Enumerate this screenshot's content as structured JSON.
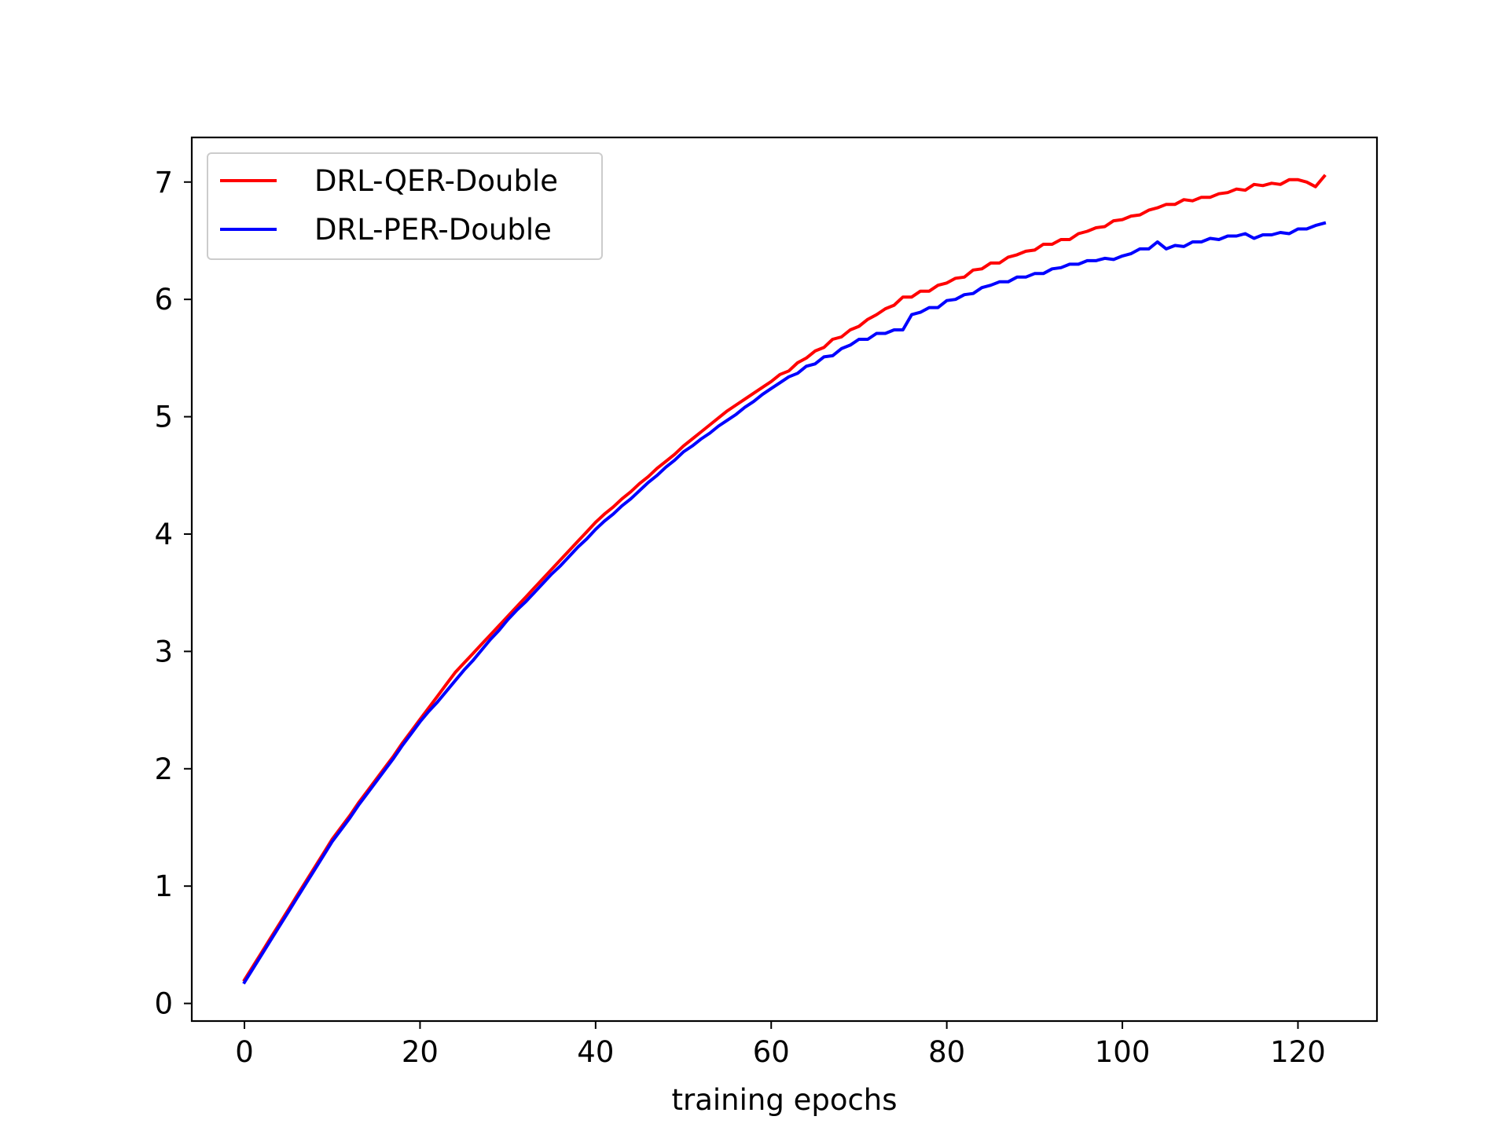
{
  "chart_data": {
    "type": "line",
    "title": "",
    "xlabel": "training epochs",
    "ylabel": "",
    "xlim": [
      -6,
      129
    ],
    "ylim": [
      -0.15,
      7.38
    ],
    "xticks": [
      0,
      20,
      40,
      60,
      80,
      100,
      120
    ],
    "yticks": [
      0,
      1,
      2,
      3,
      4,
      5,
      6,
      7
    ],
    "grid": false,
    "legend_position": "upper-left",
    "series": [
      {
        "name": "DRL-QER-Double",
        "color": "#ff0000",
        "x": [
          0,
          1,
          2,
          3,
          4,
          5,
          6,
          7,
          8,
          9,
          10,
          11,
          12,
          13,
          14,
          15,
          16,
          17,
          18,
          19,
          20,
          21,
          22,
          23,
          24,
          25,
          26,
          27,
          28,
          29,
          30,
          31,
          32,
          33,
          34,
          35,
          36,
          37,
          38,
          39,
          40,
          41,
          42,
          43,
          44,
          45,
          46,
          47,
          48,
          49,
          50,
          51,
          52,
          53,
          54,
          55,
          56,
          57,
          58,
          59,
          60,
          61,
          62,
          63,
          64,
          65,
          66,
          67,
          68,
          69,
          70,
          71,
          72,
          73,
          74,
          75,
          76,
          77,
          78,
          79,
          80,
          81,
          82,
          83,
          84,
          85,
          86,
          87,
          88,
          89,
          90,
          91,
          92,
          93,
          94,
          95,
          96,
          97,
          98,
          99,
          100,
          101,
          102,
          103,
          104,
          105,
          106,
          107,
          108,
          109,
          110,
          111,
          112,
          113,
          114,
          115,
          116,
          117,
          118,
          119,
          120,
          121,
          122,
          123
        ],
        "values": [
          0.2,
          0.34,
          0.47,
          0.6,
          0.72,
          0.85,
          0.97,
          1.1,
          1.22,
          1.34,
          1.46,
          1.58,
          1.7,
          1.81,
          1.92,
          2.04,
          2.15,
          2.26,
          2.37,
          2.47,
          2.58,
          2.68,
          2.78,
          2.88,
          2.98,
          3.07,
          3.17,
          3.26,
          3.36,
          3.45,
          3.54,
          3.63,
          3.72,
          3.8,
          3.89,
          3.97,
          4.05,
          4.13,
          4.21,
          4.28,
          4.36,
          4.43,
          4.5,
          4.57,
          4.64,
          4.71,
          4.78,
          4.84,
          4.9,
          4.97,
          5.03,
          5.09,
          5.14,
          5.2,
          5.26,
          5.31,
          5.36,
          5.41,
          5.46,
          5.51,
          5.55,
          5.6,
          5.64,
          5.69,
          5.73,
          5.77,
          5.81,
          5.84,
          5.88,
          5.92,
          5.95,
          5.98,
          6.02,
          6.05,
          6.08,
          6.11,
          6.14,
          6.16,
          6.19,
          6.21,
          6.24,
          6.26,
          6.29,
          6.31,
          6.33,
          6.35,
          6.37,
          6.39,
          6.41,
          6.43,
          6.45,
          6.47,
          6.48,
          6.5,
          6.52,
          6.53,
          6.55,
          6.56,
          6.58,
          6.59,
          6.6,
          6.61,
          6.63,
          6.64,
          6.65,
          6.66,
          6.67,
          6.68,
          6.69,
          6.7,
          6.71,
          6.72,
          6.72,
          6.73,
          6.74,
          6.75,
          6.76,
          6.76,
          6.77,
          6.78,
          6.78,
          6.79,
          6.79,
          6.8
        ]
      },
      {
        "name": "DRL-PER-Double",
        "color": "#0000ff",
        "x": [
          0,
          1,
          2,
          3,
          4,
          5,
          6,
          7,
          8,
          9,
          10,
          11,
          12,
          13,
          14,
          15,
          16,
          17,
          18,
          19,
          20,
          21,
          22,
          23,
          24,
          25,
          26,
          27,
          28,
          29,
          30,
          31,
          32,
          33,
          34,
          35,
          36,
          37,
          38,
          39,
          40,
          41,
          42,
          43,
          44,
          45,
          46,
          47,
          48,
          49,
          50,
          51,
          52,
          53,
          54,
          55,
          56,
          57,
          58,
          59,
          60,
          61,
          62,
          63,
          64,
          65,
          66,
          67,
          68,
          69,
          70,
          71,
          72,
          73,
          74,
          75,
          76,
          77,
          78,
          79,
          80,
          81,
          82,
          83,
          84,
          85,
          86,
          87,
          88,
          89,
          90,
          91,
          92,
          93,
          94,
          95,
          96,
          97,
          98,
          99,
          100,
          101,
          102,
          103,
          104,
          105,
          106,
          107,
          108,
          109,
          110,
          111,
          112,
          113,
          114,
          115,
          116,
          117,
          118,
          119,
          120,
          121,
          122,
          123
        ],
        "values": [
          0.2,
          0.34,
          0.47,
          0.6,
          0.72,
          0.85,
          0.97,
          1.1,
          1.22,
          1.34,
          1.46,
          1.58,
          1.7,
          1.81,
          1.92,
          2.04,
          2.15,
          2.26,
          2.37,
          2.47,
          2.58,
          2.68,
          2.78,
          2.88,
          2.98,
          3.07,
          3.17,
          3.26,
          3.36,
          3.45,
          3.54,
          3.63,
          3.72,
          3.8,
          3.89,
          3.97,
          4.05,
          4.13,
          4.21,
          4.28,
          4.36,
          4.43,
          4.5,
          4.57,
          4.64,
          4.71,
          4.78,
          4.84,
          4.9,
          4.97,
          5.03,
          5.09,
          5.14,
          5.2,
          5.26,
          5.31,
          5.36,
          5.41,
          5.46,
          5.51,
          5.55,
          5.6,
          5.64,
          5.69,
          5.73,
          5.77,
          5.81,
          5.84,
          5.88,
          5.92,
          5.95,
          5.98,
          6.02,
          6.05,
          6.08,
          6.11,
          6.14,
          6.16,
          6.19,
          6.21,
          6.24,
          6.26,
          6.29,
          6.31,
          6.33,
          6.35,
          6.37,
          6.39,
          6.41,
          6.43,
          6.45,
          6.47,
          6.48,
          6.5,
          6.52,
          6.53,
          6.55,
          6.56,
          6.58,
          6.59,
          6.6,
          6.61,
          6.63,
          6.64,
          6.65,
          6.66,
          6.67,
          6.68,
          6.69,
          6.7,
          6.71,
          6.72,
          6.72,
          6.73,
          6.74,
          6.75,
          6.76,
          6.76,
          6.77,
          6.78,
          6.78,
          6.79,
          6.79,
          6.8
        ]
      }
    ]
  }
}
